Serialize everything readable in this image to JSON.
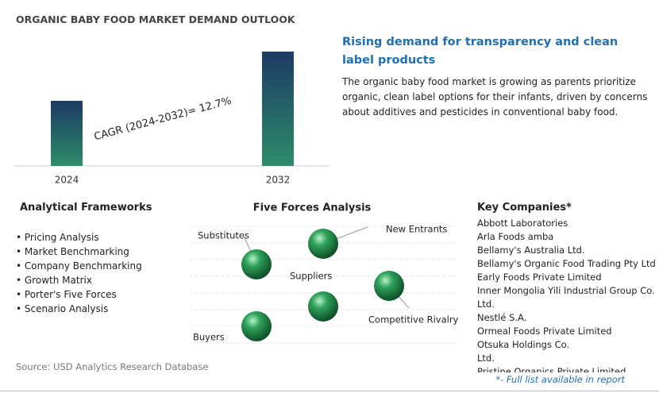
{
  "chart_data": {
    "type": "bar",
    "title": "ORGANIC BABY FOOD MARKET DEMAND OUTLOOK",
    "categories": [
      "2024",
      "2032"
    ],
    "values": [
      57,
      100
    ],
    "ylim": [
      0,
      100
    ],
    "annotation": "CAGR (2024-2032)=   12.7%"
  },
  "insight": {
    "heading": "Rising demand for transparency and clean label products",
    "text": "The organic baby food market is growing as parents prioritize organic, clean label options for their infants, driven by concerns about additives and pesticides in conventional baby food."
  },
  "frameworks": {
    "title": "Analytical Frameworks",
    "items": [
      "Pricing Analysis",
      "Market Benchmarking",
      "Company Benchmarking",
      "Growth Matrix",
      "Porter's Five Forces",
      "Scenario Analysis"
    ]
  },
  "five_forces": {
    "title": "Five Forces Analysis",
    "labels": [
      "Substitutes",
      "New Entrants",
      "Suppliers",
      "Competitive Rivalry",
      "Buyers"
    ]
  },
  "companies": {
    "title": "Key Companies*",
    "items": [
      "Abbott Laboratories",
      "Arla Foods amba",
      "Bellamy's Australia Ltd.",
      "Bellamy's Organic Food Trading Pty Ltd",
      "Early Foods Private Limited",
      "Inner Mongolia Yili Industrial Group Co.",
      "Ltd.",
      "Nestlé S.A.",
      "Ormeal Foods Private Limited",
      "Otsuka Holdings Co.",
      "Ltd.",
      "Pristine Organics Private Limited"
    ],
    "note": "*- Full list available in report"
  },
  "source": "Source: USD Analytics Research Database"
}
